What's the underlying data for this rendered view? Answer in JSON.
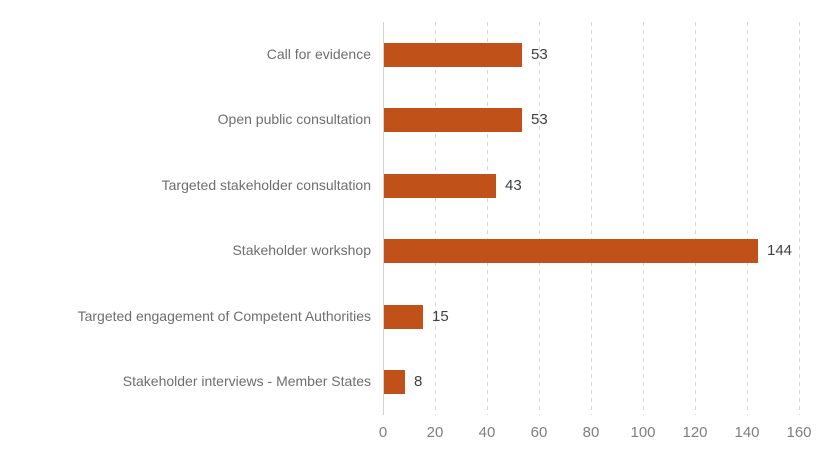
{
  "chart_data": {
    "type": "bar",
    "orientation": "horizontal",
    "title": "",
    "xlabel": "",
    "ylabel": "",
    "categories": [
      "Call for evidence",
      "Open public consultation",
      "Targeted stakeholder consultation",
      "Stakeholder workshop",
      "Targeted engagement of Competent Authorities",
      "Stakeholder interviews - Member States"
    ],
    "values": [
      53,
      53,
      43,
      144,
      15,
      8
    ],
    "data_labels": [
      "53",
      "53",
      "43",
      "144",
      "15",
      "8"
    ],
    "xlim": [
      0,
      160
    ],
    "x_ticks": [
      0,
      20,
      40,
      60,
      80,
      100,
      120,
      140,
      160
    ],
    "grid": "vertical-dashed",
    "legend": "none",
    "colors": {
      "bar": "#c05118",
      "gridline": "#d6d6d6",
      "axis_line": "#d0d0d0",
      "category_label": "#6e6e6e",
      "tick_label": "#7f7f7f",
      "data_label": "#404040",
      "background": "#ffffff"
    }
  }
}
